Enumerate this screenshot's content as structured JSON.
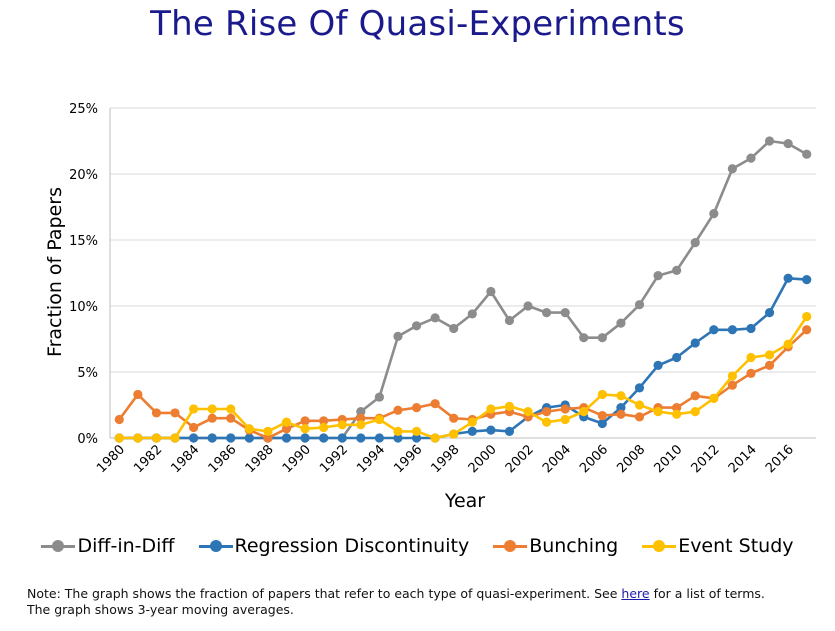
{
  "title": "The Rise Of Quasi-Experiments",
  "note": {
    "line1_prefix": "Note:  The graph shows the fraction of papers that refer to each type of quasi-experiment.  See ",
    "link_text": "here",
    "line1_suffix": " for a list of terms.",
    "line2": "The graph shows 3-year moving averages."
  },
  "chart_data": {
    "type": "line",
    "title": "The Rise Of Quasi-Experiments",
    "xlabel": "Year",
    "ylabel": "Fraction of Papers",
    "x": [
      1980,
      1981,
      1982,
      1983,
      1984,
      1985,
      1986,
      1987,
      1988,
      1989,
      1990,
      1991,
      1992,
      1993,
      1994,
      1995,
      1996,
      1997,
      1998,
      1999,
      2000,
      2001,
      2002,
      2003,
      2004,
      2005,
      2006,
      2007,
      2008,
      2009,
      2010,
      2011,
      2012,
      2013,
      2014,
      2015,
      2016,
      2017
    ],
    "x_tick_labels": [
      "1980",
      "1982",
      "1984",
      "1986",
      "1988",
      "1990",
      "1992",
      "1994",
      "1996",
      "1998",
      "2000",
      "2002",
      "2004",
      "2006",
      "2008",
      "2010",
      "2012",
      "2014",
      "2016"
    ],
    "y_tick_labels": [
      "0%",
      "5%",
      "10%",
      "15%",
      "20%",
      "25%"
    ],
    "ylim": [
      0,
      25
    ],
    "grid": "horizontal",
    "legend_position": "bottom",
    "series": [
      {
        "name": "Diff-in-Diff",
        "color": "#8c8c8c",
        "values": [
          0,
          0,
          0,
          0,
          0,
          0,
          0,
          0,
          0,
          0,
          0,
          0,
          0,
          2.0,
          3.1,
          7.7,
          8.5,
          9.1,
          8.3,
          9.4,
          11.1,
          8.9,
          10.0,
          9.5,
          9.5,
          7.6,
          7.6,
          8.7,
          10.1,
          12.3,
          12.7,
          14.8,
          17.0,
          20.4,
          21.2,
          22.5,
          22.3,
          21.5
        ]
      },
      {
        "name": "Regression Discontinuity",
        "color": "#2e75b6",
        "values": [
          0,
          0,
          0,
          0,
          0,
          0,
          0,
          0,
          0,
          0,
          0,
          0,
          0,
          0,
          0,
          0,
          0,
          0,
          0.3,
          0.5,
          0.6,
          0.5,
          1.6,
          2.3,
          2.5,
          1.6,
          1.1,
          2.3,
          3.8,
          5.5,
          6.1,
          7.2,
          8.2,
          8.2,
          8.3,
          9.5,
          12.1,
          12.0
        ]
      },
      {
        "name": "Bunching",
        "color": "#ed7d31",
        "values": [
          1.4,
          3.3,
          1.9,
          1.9,
          0.8,
          1.5,
          1.5,
          0.6,
          0,
          0.7,
          1.3,
          1.3,
          1.4,
          1.5,
          1.5,
          2.1,
          2.3,
          2.6,
          1.5,
          1.4,
          1.8,
          2.0,
          1.6,
          2.0,
          2.2,
          2.3,
          1.7,
          1.8,
          1.6,
          2.3,
          2.3,
          3.2,
          3.0,
          4.0,
          4.9,
          5.5,
          6.9,
          8.2
        ]
      },
      {
        "name": "Event Study",
        "color": "#ffc000",
        "values": [
          0,
          0,
          0,
          0,
          2.2,
          2.2,
          2.2,
          0.7,
          0.5,
          1.2,
          0.7,
          0.8,
          1.0,
          1.0,
          1.4,
          0.5,
          0.5,
          0,
          0.3,
          1.2,
          2.2,
          2.4,
          2.0,
          1.2,
          1.4,
          2.0,
          3.3,
          3.2,
          2.5,
          2.0,
          1.8,
          2.0,
          3.0,
          4.7,
          6.1,
          6.3,
          7.1,
          9.2
        ]
      }
    ]
  }
}
